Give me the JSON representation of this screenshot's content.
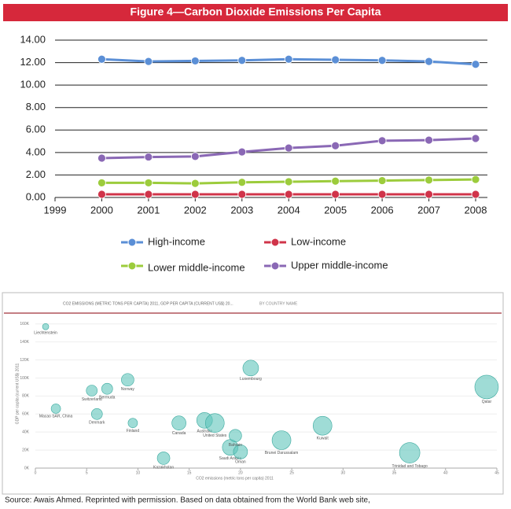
{
  "title": "Figure 4—Carbon Dioxide Emissions Per Capita",
  "source": "Source:  Awais Ahmed. Reprinted with permission. Based on data obtained from the World Bank web site,",
  "chart_data": [
    {
      "type": "line",
      "x": [
        2000,
        2001,
        2002,
        2003,
        2004,
        2005,
        2006,
        2007,
        2008
      ],
      "xlim": [
        1999,
        2008
      ],
      "xticks": [
        1999,
        2000,
        2001,
        2002,
        2003,
        2004,
        2005,
        2006,
        2007,
        2008
      ],
      "ylim": [
        0,
        14
      ],
      "yticks": [
        {
          "value": 0,
          "label": "0.00"
        },
        {
          "value": 2,
          "label": "2.00"
        },
        {
          "value": 4,
          "label": "4.00"
        },
        {
          "value": 6,
          "label": "6.00"
        },
        {
          "value": 8,
          "label": "8.00"
        },
        {
          "value": 10,
          "label": "10.00"
        },
        {
          "value": 12,
          "label": "12.00"
        },
        {
          "value": 14,
          "label": "14.00"
        }
      ],
      "grid": true,
      "series": [
        {
          "name": "High-income",
          "color": "#5b8fd6",
          "values": [
            12.3,
            12.1,
            12.15,
            12.2,
            12.3,
            12.25,
            12.2,
            12.1,
            11.85
          ]
        },
        {
          "name": "Low-income",
          "color": "#d0344a",
          "values": [
            0.28,
            0.28,
            0.28,
            0.28,
            0.28,
            0.28,
            0.28,
            0.28,
            0.28
          ]
        },
        {
          "name": "Lower middle-income",
          "color": "#9ccc3c",
          "values": [
            1.3,
            1.3,
            1.25,
            1.35,
            1.4,
            1.45,
            1.5,
            1.55,
            1.6
          ]
        },
        {
          "name": "Upper middle-income",
          "color": "#8a68b5",
          "values": [
            3.5,
            3.6,
            3.65,
            4.05,
            4.4,
            4.6,
            5.05,
            5.1,
            5.25
          ]
        }
      ]
    },
    {
      "type": "scatter",
      "title": "CO2 EMISSIONS (METRIC TONS PER CAPITA) 2011, GDP PER CAPITA (CURRENT US$) 20...",
      "subtitle": "BY COUNTRY NAME",
      "x_label": "CO2 emissions (metric tons per capita) 2011",
      "y_label": "GDP per capita (current US$) 2011",
      "color": "#5fc4ba",
      "xlim": [
        0,
        45
      ],
      "xticks": [
        0,
        5,
        10,
        15,
        20,
        25,
        30,
        35,
        40,
        45
      ],
      "ylim": [
        0,
        165000
      ],
      "yticks": [
        {
          "value": 0,
          "label": "0K"
        },
        {
          "value": 20000,
          "label": "20K"
        },
        {
          "value": 40000,
          "label": "40K"
        },
        {
          "value": 60000,
          "label": "60K"
        },
        {
          "value": 80000,
          "label": "80K"
        },
        {
          "value": 100000,
          "label": "100K"
        },
        {
          "value": 120000,
          "label": "120K"
        },
        {
          "value": 140000,
          "label": "140K"
        },
        {
          "value": 160000,
          "label": "160K"
        }
      ],
      "labels": [
        "Liechtenstein",
        "Luxembourg",
        "Qatar",
        "Bermuda",
        "Norway",
        "Switzerland",
        "Macao SAR, China",
        "Trinidad and Tobago",
        "Kuwait",
        "Australia",
        "United States",
        "Saudi Arabia",
        "Oman",
        "Brunei Darussalam",
        "Canada",
        "Denmark",
        "Finland",
        "Bahrain",
        "Kazakhstan"
      ],
      "x": [
        1.0,
        21.0,
        44.0,
        7.0,
        9.0,
        5.5,
        2.0,
        36.5,
        28.0,
        16.5,
        17.5,
        19.0,
        20.0,
        24.0,
        14.0,
        6.0,
        9.5,
        19.5,
        12.5
      ],
      "values": [
        157000,
        111000,
        90000,
        88000,
        98000,
        86000,
        66000,
        17000,
        47000,
        53000,
        50000,
        23000,
        18000,
        31000,
        50000,
        60000,
        50000,
        36000,
        11000
      ],
      "sizes": [
        4,
        10,
        15,
        7,
        8,
        7,
        6,
        13,
        12,
        10,
        12,
        10,
        9,
        12,
        9,
        7,
        6,
        8,
        8
      ]
    }
  ]
}
